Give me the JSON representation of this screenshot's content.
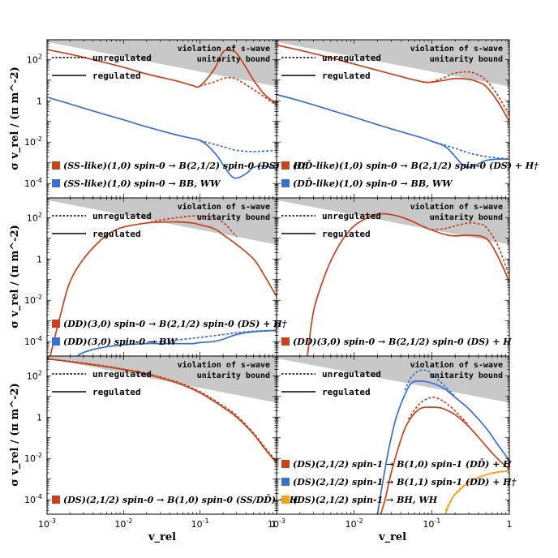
{
  "chart_data": {
    "type": "line",
    "x_axis": {
      "label": "v_rel",
      "scale": "log",
      "range": [
        0.001,
        1
      ],
      "tick_labels": [
        "10^-3",
        "10^-2",
        "10^-1",
        "1"
      ]
    },
    "y_axis": {
      "label": "σ v_rel / (π m^-2)",
      "scale": "log",
      "range": [
        2e-05,
        900
      ],
      "tick_labels": [
        "10^-4",
        "10^-2",
        "1",
        "10^2"
      ]
    },
    "legend_labels": {
      "unregulated": "unregulated",
      "regulated": "regulated"
    },
    "bound_label": [
      "violation of s-wave",
      "unitarity bound"
    ],
    "bound_region": {
      "description": "shaded region above unitarity bound",
      "x": [
        0.001,
        1
      ],
      "y": [
        700,
        5
      ]
    },
    "colors": {
      "red": "#c8401c",
      "blue": "#3a6fd0",
      "orange": "#f5a218",
      "bound": "#c8c8c8"
    },
    "panels": [
      {
        "id": "top-left",
        "processes": [
          {
            "color": "red",
            "text": "(SS-like)(1,0) spin-0 → B(2,1/2) spin-0 (DS) + H†"
          },
          {
            "color": "blue",
            "text": "(SS-like)(1,0) spin-0 → BB, WW"
          }
        ],
        "series": [
          {
            "color": "red",
            "style": "solid",
            "x": [
              0.001,
              0.002,
              0.005,
              0.01,
              0.02,
              0.05,
              0.08,
              0.1,
              0.15,
              0.2,
              0.25,
              0.3,
              0.4,
              0.5,
              0.7,
              1
            ],
            "y": [
              300,
              180,
              80,
              42,
              20,
              9,
              5.5,
              5.2,
              30,
              230,
              270,
              200,
              40,
              10,
              2,
              0.7
            ]
          },
          {
            "color": "red",
            "style": "dotted",
            "x": [
              0.1,
              0.15,
              0.2,
              0.25,
              0.3,
              0.4,
              0.5,
              0.7,
              1
            ],
            "y": [
              5.2,
              8,
              12,
              13,
              11,
              6,
              3.5,
              1.5,
              0.6
            ]
          },
          {
            "color": "blue",
            "style": "solid",
            "x": [
              0.001,
              0.002,
              0.005,
              0.01,
              0.02,
              0.05,
              0.08,
              0.1,
              0.13,
              0.17,
              0.2,
              0.25,
              0.3,
              0.4,
              0.5,
              0.7,
              1
            ],
            "y": [
              1.5,
              0.7,
              0.25,
              0.12,
              0.055,
              0.022,
              0.015,
              0.012,
              0.006,
              0.002,
              0.0008,
              0.00025,
              0.00018,
              0.0003,
              0.0006,
              0.0007,
              0.0005
            ]
          },
          {
            "color": "blue",
            "style": "dotted",
            "x": [
              0.1,
              0.15,
              0.2,
              0.3,
              0.5,
              1
            ],
            "y": [
              0.012,
              0.008,
              0.006,
              0.004,
              0.0035,
              0.004
            ]
          }
        ]
      },
      {
        "id": "top-right",
        "processes": [
          {
            "color": "red",
            "text": "(DD̄-like)(1,0) spin-0 → B(2,1/2) spin-0 (DS) + H†"
          },
          {
            "color": "blue",
            "text": "(DD̄-like)(1,0) spin-0 → BB, WW"
          }
        ],
        "series": [
          {
            "color": "red",
            "style": "solid",
            "x": [
              0.001,
              0.002,
              0.005,
              0.01,
              0.02,
              0.05,
              0.08,
              0.1,
              0.15,
              0.2,
              0.3,
              0.4,
              0.5,
              0.7,
              1
            ],
            "y": [
              500,
              280,
              120,
              60,
              30,
              12,
              8,
              8,
              10,
              12,
              11,
              8,
              5,
              1,
              0.1
            ]
          },
          {
            "color": "red",
            "style": "dotted",
            "x": [
              0.1,
              0.15,
              0.2,
              0.3,
              0.4,
              0.5,
              0.7,
              1
            ],
            "y": [
              8,
              14,
              22,
              25,
              18,
              10,
              2,
              0.2
            ]
          },
          {
            "color": "blue",
            "style": "solid",
            "x": [
              0.001,
              0.002,
              0.005,
              0.01,
              0.02,
              0.05,
              0.08,
              0.1,
              0.15,
              0.2,
              0.25,
              0.3,
              0.4,
              0.5,
              0.7,
              1
            ],
            "y": [
              2,
              1,
              0.35,
              0.16,
              0.07,
              0.025,
              0.015,
              0.011,
              0.006,
              0.002,
              0.0008,
              0.0006,
              0.0009,
              0.0013,
              0.0015,
              0.0015
            ]
          },
          {
            "color": "blue",
            "style": "dotted",
            "x": [
              0.1,
              0.15,
              0.2,
              0.3,
              0.5,
              1
            ],
            "y": [
              0.011,
              0.007,
              0.005,
              0.003,
              0.002,
              0.0015
            ]
          }
        ]
      },
      {
        "id": "mid-left",
        "processes": [
          {
            "color": "red",
            "text": "(DD)(3,0) spin-0 → B(2,1/2) spin-0 (DS) + H†"
          },
          {
            "color": "blue",
            "text": "(DD)(3,0) spin-0 → BW"
          }
        ],
        "series": [
          {
            "color": "red",
            "style": "solid",
            "x": [
              0.0011,
              0.0015,
              0.002,
              0.003,
              0.005,
              0.007,
              0.01,
              0.02,
              0.03,
              0.05,
              0.08,
              0.1,
              0.15,
              0.2,
              0.3,
              0.5,
              0.7,
              1
            ],
            "y": [
              2e-05,
              0.002,
              0.08,
              1,
              8,
              20,
              35,
              55,
              60,
              62,
              55,
              45,
              30,
              15,
              5,
              1,
              0.15,
              0.015
            ]
          },
          {
            "color": "red",
            "style": "dotted",
            "x": [
              0.02,
              0.03,
              0.05,
              0.08,
              0.1,
              0.15,
              0.2,
              0.3
            ],
            "y": [
              55,
              75,
              100,
              120,
              120,
              100,
              60,
              12
            ]
          },
          {
            "color": "blue",
            "style": "solid",
            "x": [
              0.0025,
              0.003,
              0.005,
              0.01,
              0.02,
              0.03,
              0.05,
              0.08,
              0.1,
              0.15,
              0.2,
              0.3,
              0.5,
              1
            ],
            "y": [
              2e-05,
              3e-05,
              5e-05,
              7e-05,
              8e-05,
              8e-05,
              8e-05,
              8e-05,
              9e-05,
              0.0001,
              0.00013,
              0.00022,
              0.0003,
              0.00035
            ]
          },
          {
            "color": "blue",
            "style": "dotted",
            "x": [
              0.02,
              0.05,
              0.1,
              0.2,
              0.3,
              0.5,
              1
            ],
            "y": [
              9e-05,
              0.00012,
              0.00016,
              0.00022,
              0.00027,
              0.00032,
              0.00035
            ]
          }
        ]
      },
      {
        "id": "mid-right",
        "processes": [
          {
            "color": "red",
            "text": "(DD)(3,0) spin-0 → B(2,1/2) spin-0 (DS) + H"
          }
        ],
        "series": [
          {
            "color": "red",
            "style": "solid",
            "x": [
              0.0025,
              0.003,
              0.004,
              0.005,
              0.007,
              0.01,
              0.015,
              0.02,
              0.03,
              0.05,
              0.08,
              0.1,
              0.15,
              0.2,
              0.3,
              0.5,
              0.7,
              1
            ],
            "y": [
              2e-05,
              0.003,
              0.1,
              0.8,
              8,
              40,
              100,
              150,
              140,
              80,
              35,
              25,
              15,
              13,
              14,
              10,
              1.5,
              0.08
            ]
          },
          {
            "color": "red",
            "style": "dotted",
            "x": [
              0.1,
              0.15,
              0.2,
              0.3,
              0.4,
              0.5,
              0.7,
              1
            ],
            "y": [
              25,
              30,
              40,
              55,
              50,
              35,
              5,
              0.15
            ]
          }
        ]
      },
      {
        "id": "bottom-left",
        "processes": [
          {
            "color": "red",
            "text": "(DS)(2,1/2) spin-0 → B(1,0) spin-0 (SS/DD̄) + H"
          }
        ],
        "series": [
          {
            "color": "red",
            "style": "solid",
            "x": [
              0.001,
              0.002,
              0.005,
              0.01,
              0.02,
              0.05,
              0.1,
              0.2,
              0.3,
              0.5,
              0.7,
              1
            ],
            "y": [
              650,
              480,
              300,
              200,
              120,
              45,
              15,
              3,
              1,
              0.15,
              0.03,
              0.006
            ]
          },
          {
            "color": "red",
            "style": "dotted",
            "x": [
              0.001,
              0.002,
              0.005,
              0.01,
              0.02,
              0.05,
              0.1,
              0.2,
              0.3,
              0.5,
              0.7,
              1
            ],
            "y": [
              660,
              500,
              320,
              210,
              130,
              50,
              17,
              3.5,
              1.2,
              0.17,
              0.035,
              0.007
            ]
          }
        ]
      },
      {
        "id": "bottom-right",
        "processes": [
          {
            "color": "red",
            "text": "(DS)(2,1/2) spin-1 → B(1,0) spin-1 (DD̄) + H"
          },
          {
            "color": "blue",
            "text": "(DS)(2,1/2) spin-1 → B(1,1) spin-1 (DD) + H†"
          },
          {
            "color": "orange",
            "text": "(DS)(2,1/2) spin-1 → BH, WH"
          }
        ],
        "series": [
          {
            "color": "red",
            "style": "solid",
            "x": [
              0.022,
              0.025,
              0.03,
              0.04,
              0.05,
              0.07,
              0.1,
              0.13,
              0.15,
              0.2,
              0.3,
              0.5,
              0.7,
              1
            ],
            "y": [
              2e-05,
              0.0001,
              0.002,
              0.08,
              0.6,
              2.5,
              3,
              2.8,
              2.3,
              1.3,
              0.35,
              0.04,
              0.01,
              0.003
            ]
          },
          {
            "color": "red",
            "style": "dotted",
            "x": [
              0.05,
              0.07,
              0.1,
              0.13,
              0.15,
              0.2,
              0.3
            ],
            "y": [
              0.8,
              4.5,
              9,
              7,
              5,
              2,
              0.4
            ]
          },
          {
            "color": "blue",
            "style": "solid",
            "x": [
              0.02,
              0.023,
              0.028,
              0.035,
              0.045,
              0.055,
              0.07,
              0.1,
              0.13,
              0.15,
              0.2,
              0.3,
              0.5,
              0.7,
              1
            ],
            "y": [
              2e-05,
              0.0005,
              0.03,
              1,
              12,
              45,
              55,
              45,
              30,
              22,
              9,
              2.5,
              0.3,
              0.05,
              0.008
            ]
          },
          {
            "color": "blue",
            "style": "dotted",
            "x": [
              0.045,
              0.055,
              0.07,
              0.09,
              0.1,
              0.13,
              0.15,
              0.2
            ],
            "y": [
              20,
              90,
              180,
              170,
              120,
              50,
              30,
              10
            ]
          },
          {
            "color": "orange",
            "style": "solid",
            "x": [
              0.15,
              0.16,
              0.18,
              0.2,
              0.25,
              0.3,
              0.4,
              0.5,
              0.7,
              1
            ],
            "y": [
              2e-05,
              4e-05,
              0.0001,
              0.00018,
              0.0004,
              0.0007,
              0.0012,
              0.0016,
              0.0022,
              0.0025
            ]
          },
          {
            "color": "orange",
            "style": "dotted",
            "x": [
              0.15,
              0.2,
              0.3,
              0.5,
              1
            ],
            "y": [
              3e-05,
              0.0002,
              0.0007,
              0.0016,
              0.0025
            ]
          }
        ]
      }
    ]
  }
}
